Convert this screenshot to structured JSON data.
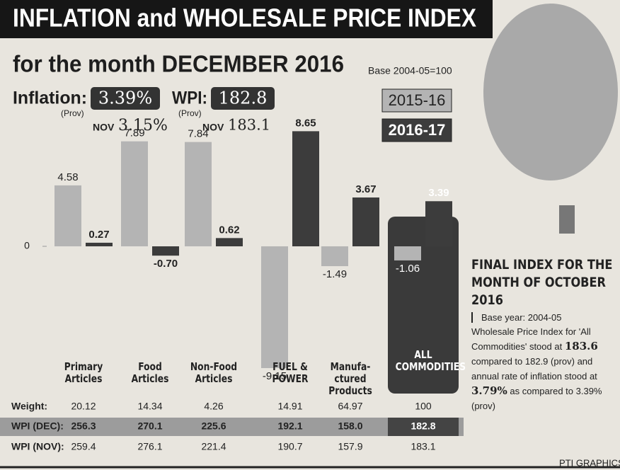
{
  "chart_data": {
    "type": "bar",
    "title": "INFLATION and WHOLESALE PRICE INDEX",
    "subtitle": "for the month DECEMBER 2016",
    "base_note": "Base 2004-05=100",
    "categories": [
      "Primary\nArticles",
      "Food\nArticles",
      "Non-Food\nArticles",
      "FUEL &\nPOWER",
      "Manufa-\nctured\nProducts",
      "ALL\nCOMMODITIES"
    ],
    "series": [
      {
        "name": "2015-16",
        "color": "#b4b4b4",
        "values": [
          4.58,
          7.89,
          7.84,
          -9.15,
          -1.49,
          -1.06
        ],
        "value_labels": [
          "4.58",
          "7.89",
          "7.84",
          "-9.15",
          "-1.49",
          "-1.06"
        ]
      },
      {
        "name": "2016-17",
        "color": "#3c3c3c",
        "values": [
          0.27,
          -0.7,
          0.62,
          8.65,
          3.67,
          3.39
        ],
        "value_labels": [
          "0.27",
          "-0.70",
          "0.62",
          "8.65",
          "3.67",
          "3.39"
        ]
      }
    ],
    "ylim": [
      -10,
      10
    ],
    "yticks": [
      0
    ]
  },
  "header": {
    "inflation_label": "Inflation:",
    "inflation": "3.39%",
    "inflation_prov": "(Prov)",
    "inflation_nov_label": "NOV",
    "inflation_nov": "3.15%",
    "wpi_label": "WPI:",
    "wpi": "182.8",
    "wpi_prov": "(Prov)",
    "wpi_nov_label": "NOV",
    "wpi_nov": "183.1"
  },
  "table": {
    "rows": [
      [
        "Weight:",
        "20.12",
        "14.34",
        "4.26",
        "14.91",
        "64.97",
        "100"
      ],
      [
        "WPI (DEC):",
        "256.3",
        "270.1",
        "225.6",
        "192.1",
        "158.0",
        "182.8"
      ],
      [
        "WPI (NOV):",
        "259.4",
        "276.1",
        "221.4",
        "190.7",
        "157.9",
        "183.1"
      ]
    ]
  },
  "side": {
    "title": "FINAL INDEX FOR THE MONTH OF OCTOBER 2016",
    "base": "Base year: 2004-05",
    "text": [
      "Wholesale Price Index for 'All Commodities' stood at ",
      "183.6",
      " compared to 182.9 (prov) and annual rate of inflation stood at ",
      "3.79%",
      " as compared to 3.39% (prov)"
    ]
  },
  "credit": "PTI GRAPHICS"
}
